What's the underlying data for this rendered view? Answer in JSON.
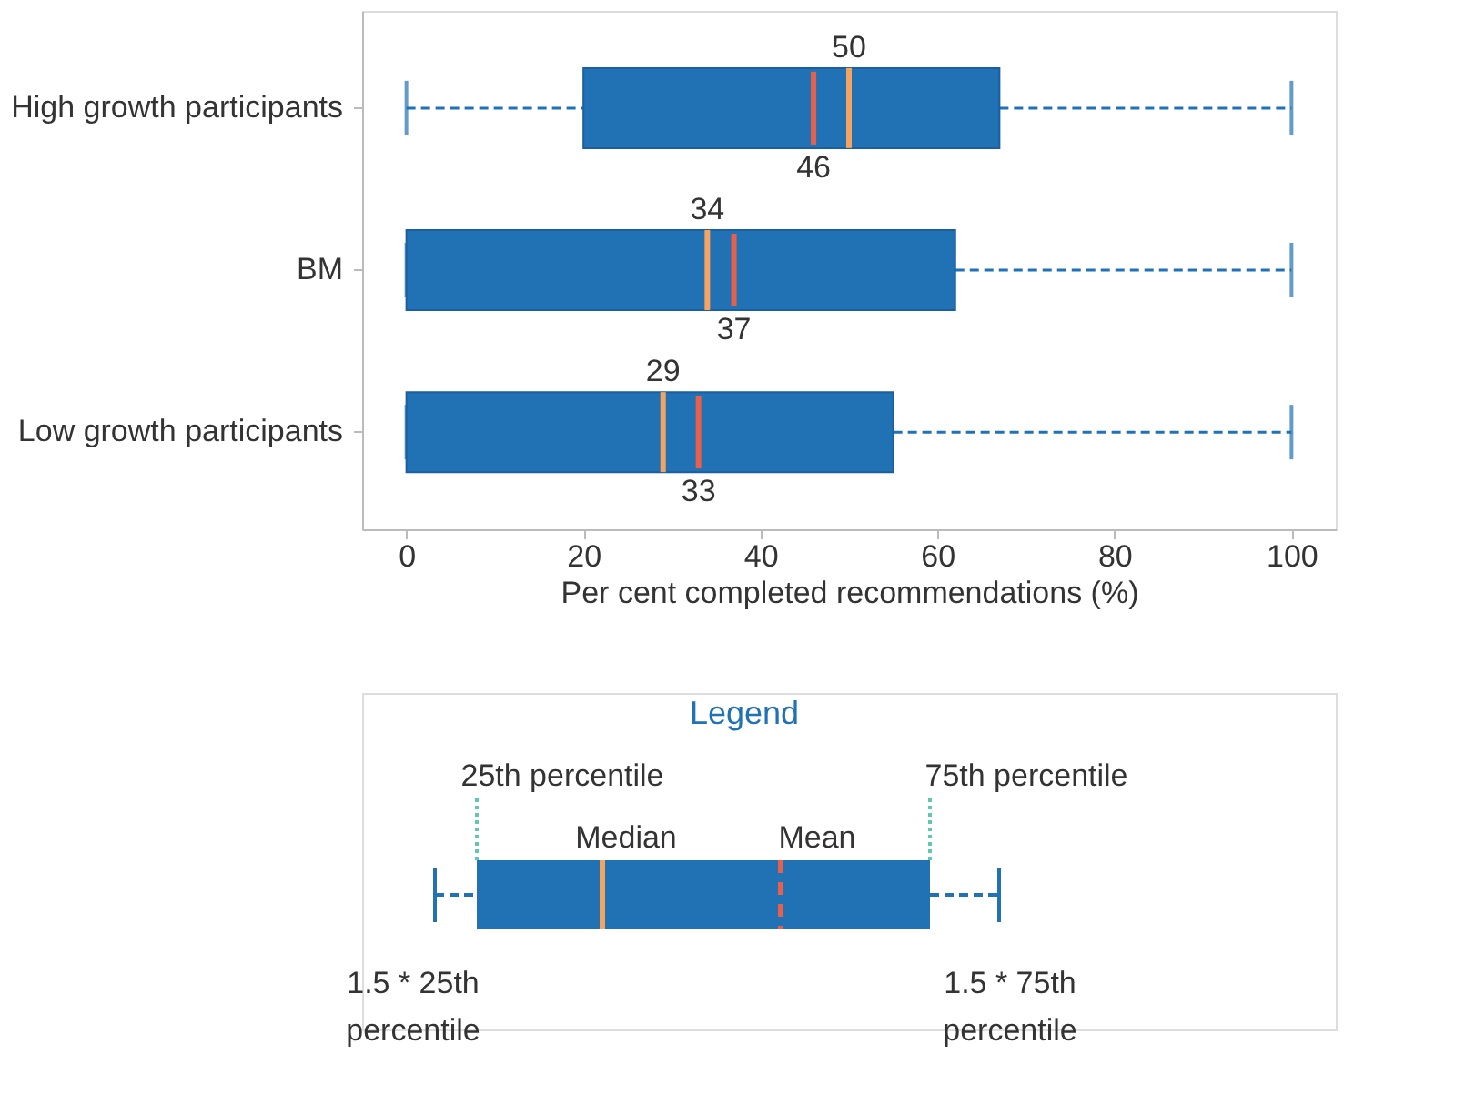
{
  "chart_data": [
    {
      "type": "box",
      "orientation": "horizontal",
      "categories": [
        "High growth participants",
        "BM",
        "Low growth participants"
      ],
      "boxes": [
        {
          "low": 0,
          "q1": 20,
          "median": 50,
          "q3": 67,
          "high": 100,
          "mean": 46
        },
        {
          "low": 0,
          "q1": 0,
          "median": 34,
          "q3": 62,
          "high": 100,
          "mean": 37
        },
        {
          "low": 0,
          "q1": 0,
          "median": 29,
          "q3": 55,
          "high": 100,
          "mean": 33
        }
      ],
      "color": "#2171b5",
      "xlim": [
        -5,
        105
      ],
      "xticks": [
        0,
        20,
        40,
        60,
        80,
        100
      ],
      "xlabel": "Per cent completed recommendations (%)",
      "grid": false,
      "annotations": [
        {
          "text": "50",
          "x": 50,
          "y": "High growth participants"
        },
        {
          "text": "46",
          "x": 46,
          "y": "High growth participants"
        },
        {
          "text": "34",
          "x": 34,
          "y": "BM"
        },
        {
          "text": "37",
          "x": 37,
          "y": "BM"
        },
        {
          "text": "29",
          "x": 29,
          "y": "Low growth participants"
        },
        {
          "text": "33",
          "x": 33,
          "y": "Low growth participants"
        }
      ]
    },
    {
      "type": "other",
      "title": "Legend",
      "annotations": [
        "25th percentile",
        "75th percentile",
        "Median",
        "Mean",
        "1.5 * 25th percentile",
        "1.5 * 75th percentile"
      ]
    }
  ]
}
